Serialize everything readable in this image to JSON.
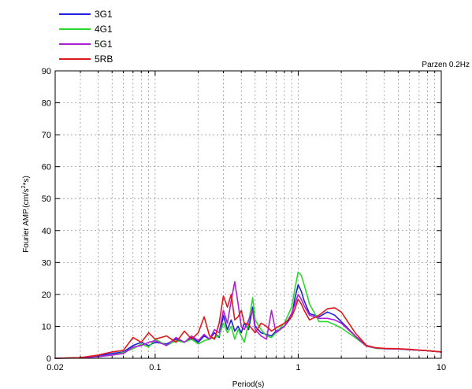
{
  "chart_data": {
    "type": "line",
    "title": "",
    "annotation": "Parzen 0.2Hz",
    "xlabel": "Period(s)",
    "ylabel": "Fourier AMP.(cm/s²*s)",
    "ylabel_parts": {
      "pre": "Fourier AMP.(cm/s",
      "sup": "2",
      "post": "*s)"
    },
    "xscale": "log",
    "xlim": [
      0.02,
      10
    ],
    "ylim": [
      0,
      90
    ],
    "x_ticks": [
      0.02,
      0.1,
      1,
      10
    ],
    "x_tick_labels": [
      "0.02",
      "0.1",
      "1",
      "10"
    ],
    "y_ticks": [
      0,
      10,
      20,
      30,
      40,
      50,
      60,
      70,
      80,
      90
    ],
    "y_tick_labels": [
      "0",
      "10",
      "20",
      "30",
      "40",
      "50",
      "60",
      "70",
      "80",
      "90"
    ],
    "grid": true,
    "legend_position": "top-left, outside plot",
    "series": [
      {
        "name": "3G1",
        "color": "#1f1fdc",
        "x": [
          0.02,
          0.03,
          0.04,
          0.05,
          0.06,
          0.07,
          0.08,
          0.09,
          0.1,
          0.12,
          0.14,
          0.16,
          0.18,
          0.2,
          0.22,
          0.24,
          0.26,
          0.28,
          0.3,
          0.32,
          0.34,
          0.36,
          0.38,
          0.4,
          0.42,
          0.45,
          0.48,
          0.5,
          0.55,
          0.6,
          0.65,
          0.7,
          0.8,
          0.9,
          0.95,
          1.0,
          1.05,
          1.1,
          1.2,
          1.4,
          1.6,
          1.8,
          2.0,
          2.5,
          3.0,
          3.5,
          4.0,
          5.0,
          6.0,
          8.0,
          10.0
        ],
        "y": [
          0,
          0.2,
          0.8,
          1.5,
          2.0,
          4.0,
          5.0,
          4.0,
          5.0,
          4.5,
          6.0,
          5.0,
          6.5,
          5.0,
          7.0,
          6.0,
          8.0,
          6.5,
          13.5,
          9.0,
          12.0,
          8.5,
          10.0,
          8.0,
          11.0,
          9.0,
          16.0,
          10.0,
          8.0,
          7.5,
          7.0,
          8.5,
          10.0,
          13.0,
          19.0,
          23.0,
          21.0,
          18.0,
          14.0,
          13.0,
          14.5,
          13.5,
          11.5,
          7.0,
          4.0,
          3.2,
          3.0,
          2.9,
          2.7,
          2.4,
          2.0
        ]
      },
      {
        "name": "4G1",
        "color": "#2cd82c",
        "x": [
          0.02,
          0.03,
          0.04,
          0.05,
          0.06,
          0.07,
          0.08,
          0.09,
          0.1,
          0.12,
          0.14,
          0.16,
          0.18,
          0.2,
          0.22,
          0.24,
          0.26,
          0.28,
          0.3,
          0.32,
          0.34,
          0.36,
          0.38,
          0.4,
          0.42,
          0.45,
          0.48,
          0.5,
          0.55,
          0.6,
          0.65,
          0.7,
          0.8,
          0.9,
          0.95,
          1.0,
          1.05,
          1.1,
          1.2,
          1.4,
          1.6,
          1.8,
          2.0,
          2.5,
          3.0,
          3.5,
          4.0,
          5.0,
          6.0,
          8.0,
          10.0
        ],
        "y": [
          0,
          0.1,
          0.5,
          1.0,
          1.8,
          3.0,
          4.5,
          3.5,
          6.0,
          4.0,
          5.5,
          5.0,
          6.0,
          4.5,
          5.5,
          6.0,
          6.5,
          7.0,
          11.0,
          8.0,
          10.0,
          6.0,
          9.0,
          7.0,
          5.0,
          11.0,
          19.0,
          12.0,
          9.0,
          7.0,
          6.5,
          8.0,
          11.0,
          16.0,
          22.0,
          27.0,
          26.0,
          23.0,
          17.0,
          11.5,
          11.5,
          10.5,
          9.5,
          6.5,
          3.8,
          3.1,
          3.0,
          2.9,
          2.7,
          2.4,
          2.0
        ]
      },
      {
        "name": "5G1",
        "color": "#b01ed6",
        "x": [
          0.02,
          0.03,
          0.04,
          0.05,
          0.06,
          0.07,
          0.08,
          0.09,
          0.1,
          0.12,
          0.14,
          0.16,
          0.18,
          0.2,
          0.22,
          0.24,
          0.26,
          0.28,
          0.3,
          0.32,
          0.34,
          0.36,
          0.38,
          0.4,
          0.42,
          0.45,
          0.48,
          0.5,
          0.55,
          0.6,
          0.65,
          0.7,
          0.8,
          0.9,
          0.95,
          1.0,
          1.05,
          1.1,
          1.2,
          1.4,
          1.6,
          1.8,
          2.0,
          2.5,
          3.0,
          3.5,
          4.0,
          5.0,
          6.0,
          8.0,
          10.0
        ],
        "y": [
          0,
          0.1,
          0.5,
          1.0,
          1.5,
          3.5,
          4.0,
          5.0,
          5.5,
          4.0,
          6.5,
          5.0,
          7.0,
          5.5,
          7.5,
          6.0,
          9.0,
          8.0,
          15.0,
          11.0,
          18.0,
          24.0,
          17.0,
          10.0,
          9.0,
          12.0,
          15.0,
          9.0,
          7.0,
          6.0,
          15.0,
          8.0,
          10.0,
          14.0,
          17.0,
          20.0,
          18.5,
          16.5,
          13.5,
          12.5,
          12.5,
          12.0,
          11.0,
          7.0,
          3.8,
          3.2,
          3.0,
          2.9,
          2.7,
          2.4,
          2.0
        ]
      },
      {
        "name": "5RB",
        "color": "#e01a1a",
        "x": [
          0.02,
          0.03,
          0.04,
          0.05,
          0.06,
          0.07,
          0.08,
          0.09,
          0.1,
          0.12,
          0.14,
          0.16,
          0.18,
          0.2,
          0.22,
          0.24,
          0.26,
          0.28,
          0.3,
          0.32,
          0.34,
          0.36,
          0.38,
          0.4,
          0.42,
          0.45,
          0.48,
          0.5,
          0.55,
          0.6,
          0.65,
          0.7,
          0.8,
          0.9,
          0.95,
          1.0,
          1.05,
          1.1,
          1.2,
          1.4,
          1.6,
          1.8,
          2.0,
          2.5,
          3.0,
          3.5,
          4.0,
          5.0,
          6.0,
          8.0,
          10.0
        ],
        "y": [
          0,
          0.2,
          1.0,
          2.0,
          2.5,
          6.5,
          5.0,
          8.0,
          6.0,
          7.0,
          5.0,
          8.5,
          6.0,
          8.0,
          13.0,
          7.0,
          6.0,
          11.0,
          19.5,
          16.0,
          20.0,
          12.0,
          13.0,
          15.0,
          11.0,
          10.5,
          9.0,
          8.0,
          11.0,
          10.0,
          8.5,
          9.5,
          11.0,
          13.0,
          15.5,
          18.5,
          17.0,
          15.0,
          12.0,
          13.5,
          15.5,
          15.8,
          14.5,
          8.0,
          4.0,
          3.3,
          3.1,
          3.0,
          2.8,
          2.4,
          2.0
        ]
      }
    ]
  }
}
